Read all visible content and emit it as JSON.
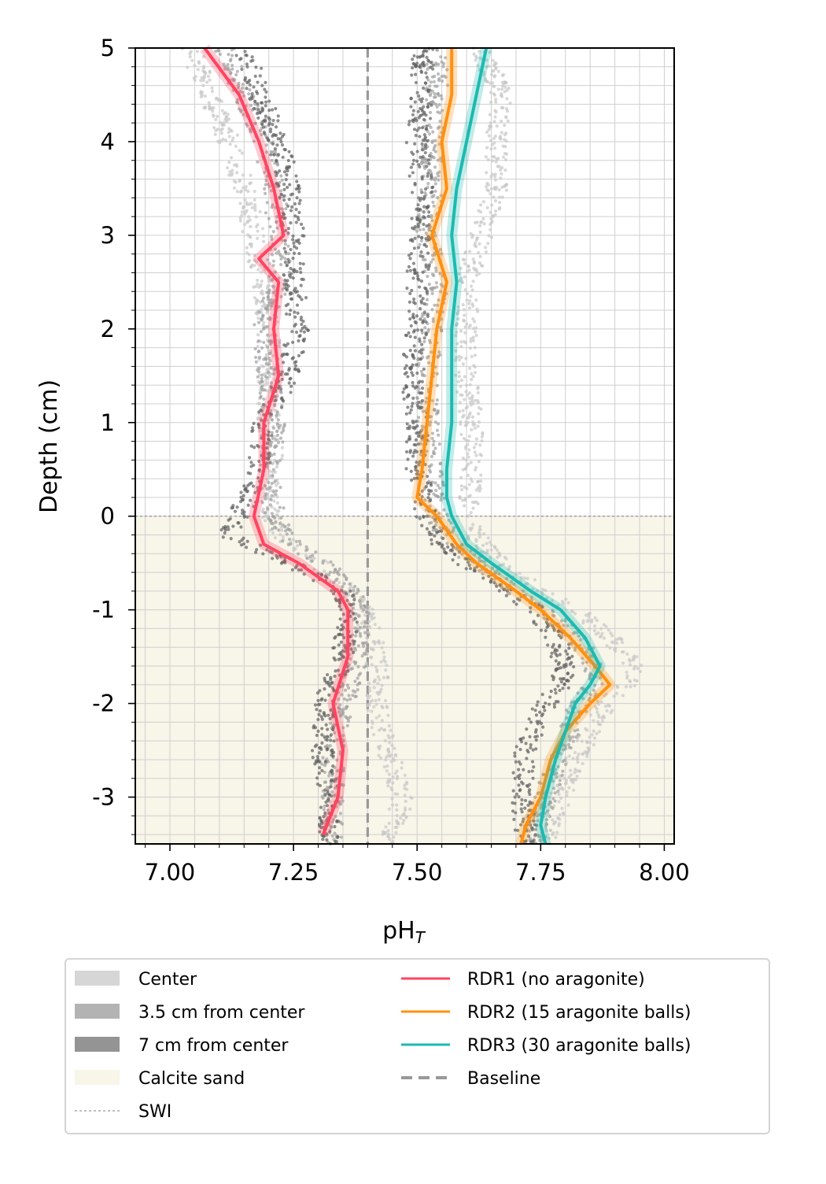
{
  "chart_data": {
    "type": "line",
    "xlabel": "pH",
    "xlabel_sub": "T",
    "ylabel": "Depth (cm)",
    "xlim": [
      6.93,
      8.02
    ],
    "ylim": [
      -3.5,
      5
    ],
    "x_ticks": [
      7.0,
      7.25,
      7.5,
      7.75,
      8.0
    ],
    "x_tick_labels": [
      "7.00",
      "7.25",
      "7.50",
      "7.75",
      "8.00"
    ],
    "y_ticks": [
      5,
      4,
      3,
      2,
      1,
      0,
      -1,
      -2,
      -3
    ],
    "y_tick_labels": [
      "5",
      "4",
      "3",
      "2",
      "1",
      "0",
      "-1",
      "-2",
      "-3"
    ],
    "grid": true,
    "swi_depth": 0,
    "baseline_ph": 7.4,
    "calcite_sand_depth_range": [
      -3.5,
      0
    ],
    "series": [
      {
        "name": "RDR1 (no aragonite)",
        "color": "#ff4460",
        "depth": [
          5.0,
          4.5,
          4.0,
          3.5,
          3.0,
          2.75,
          2.5,
          2.0,
          1.5,
          1.0,
          0.5,
          0.0,
          -0.3,
          -0.5,
          -0.8,
          -1.0,
          -1.5,
          -2.0,
          -2.5,
          -3.0,
          -3.4
        ],
        "ph": [
          7.07,
          7.14,
          7.18,
          7.21,
          7.23,
          7.18,
          7.22,
          7.21,
          7.22,
          7.19,
          7.19,
          7.17,
          7.19,
          7.26,
          7.34,
          7.36,
          7.36,
          7.33,
          7.35,
          7.34,
          7.31
        ]
      },
      {
        "name": "RDR2 (15 aragonite balls)",
        "color": "#ff9010",
        "depth": [
          5.0,
          4.5,
          4.0,
          3.5,
          3.0,
          2.5,
          2.0,
          1.5,
          1.0,
          0.5,
          0.2,
          0.0,
          -0.3,
          -0.5,
          -0.8,
          -1.0,
          -1.3,
          -1.6,
          -1.8,
          -2.0,
          -2.3,
          -2.6,
          -3.0,
          -3.3,
          -3.5
        ],
        "ph": [
          7.57,
          7.57,
          7.55,
          7.56,
          7.53,
          7.56,
          7.54,
          7.53,
          7.52,
          7.51,
          7.5,
          7.54,
          7.58,
          7.62,
          7.7,
          7.75,
          7.81,
          7.86,
          7.89,
          7.85,
          7.8,
          7.77,
          7.75,
          7.72,
          7.71
        ]
      },
      {
        "name": "RDR3 (30 aragonite balls)",
        "color": "#1cbab0",
        "depth": [
          5.0,
          4.5,
          4.0,
          3.5,
          3.0,
          2.5,
          2.0,
          1.5,
          1.0,
          0.5,
          0.2,
          0.0,
          -0.3,
          -0.5,
          -0.8,
          -1.0,
          -1.3,
          -1.6,
          -1.8,
          -2.0,
          -2.3,
          -2.6,
          -3.0,
          -3.3,
          -3.5
        ],
        "ph": [
          7.64,
          7.62,
          7.6,
          7.58,
          7.57,
          7.58,
          7.57,
          7.57,
          7.57,
          7.56,
          7.56,
          7.57,
          7.6,
          7.65,
          7.73,
          7.79,
          7.84,
          7.87,
          7.85,
          7.82,
          7.8,
          7.78,
          7.76,
          7.75,
          7.76
        ]
      }
    ],
    "scatter_groups": [
      {
        "name": "Center",
        "color": "#c8c8c8",
        "left_branch": {
          "depth": [
            5.0,
            4.5,
            4.0,
            3.5,
            3.0,
            2.5,
            2.0,
            1.5,
            1.0,
            0.5,
            0.2,
            0.0,
            -0.3,
            -0.5,
            -0.8,
            -1.0,
            -1.5,
            -2.0,
            -2.5,
            -3.0,
            -3.4
          ],
          "ph": [
            7.04,
            7.08,
            7.12,
            7.15,
            7.17,
            7.19,
            7.2,
            7.2,
            7.2,
            7.21,
            7.2,
            7.2,
            7.24,
            7.3,
            7.36,
            7.39,
            7.42,
            7.42,
            7.44,
            7.47,
            7.45
          ]
        },
        "right_branch": {
          "depth": [
            5.0,
            4.5,
            4.0,
            3.5,
            3.0,
            2.5,
            2.0,
            1.5,
            1.0,
            0.5,
            0.0,
            -0.3,
            -0.5,
            -0.8,
            -1.0,
            -1.3,
            -1.6,
            -1.8,
            -2.0,
            -2.5,
            -3.0,
            -3.3
          ],
          "ph": [
            7.63,
            7.67,
            7.66,
            7.66,
            7.63,
            7.6,
            7.6,
            7.6,
            7.61,
            7.61,
            7.6,
            7.63,
            7.68,
            7.75,
            7.82,
            7.89,
            7.94,
            7.92,
            7.88,
            7.83,
            7.79,
            7.77
          ]
        }
      },
      {
        "name": "3.5 cm from center",
        "color": "#a0a0a0",
        "left_branch": {
          "depth": [
            5.0,
            4.5,
            4.0,
            3.5,
            3.0,
            2.5,
            2.0,
            1.5,
            1.0,
            0.5,
            0.0,
            -0.3,
            -0.5,
            -0.8,
            -1.0,
            -1.5,
            -2.0,
            -2.5,
            -3.0,
            -3.4
          ],
          "ph": [
            7.11,
            7.15,
            7.19,
            7.21,
            7.22,
            7.22,
            7.19,
            7.2,
            7.21,
            7.2,
            7.21,
            7.25,
            7.31,
            7.37,
            7.38,
            7.38,
            7.35,
            7.33,
            7.33,
            7.33
          ]
        },
        "right_branch": {
          "depth": [
            5.0,
            4.5,
            4.0,
            3.5,
            3.0,
            2.5,
            2.0,
            1.5,
            1.0,
            0.5,
            0.0,
            -0.3,
            -0.5,
            -0.8,
            -1.0,
            -1.3,
            -1.6,
            -1.8,
            -2.0,
            -2.5,
            -3.0,
            -3.3
          ],
          "ph": [
            7.54,
            7.54,
            7.53,
            7.53,
            7.52,
            7.54,
            7.53,
            7.52,
            7.52,
            7.53,
            7.54,
            7.57,
            7.62,
            7.7,
            7.76,
            7.82,
            7.86,
            7.86,
            7.83,
            7.79,
            7.76,
            7.74
          ]
        }
      },
      {
        "name": "7 cm from center",
        "color": "#606060",
        "left_branch": {
          "depth": [
            5.0,
            4.5,
            4.0,
            3.5,
            3.0,
            2.5,
            2.0,
            1.5,
            1.0,
            0.5,
            0.0,
            -0.2,
            -0.5,
            -0.8,
            -1.0,
            -1.5,
            -2.0,
            -2.5,
            -3.0,
            -3.4
          ],
          "ph": [
            7.15,
            7.18,
            7.22,
            7.24,
            7.25,
            7.25,
            7.26,
            7.24,
            7.19,
            7.18,
            7.14,
            7.12,
            7.24,
            7.35,
            7.36,
            7.35,
            7.31,
            7.31,
            7.32,
            7.32
          ]
        },
        "right_branch": {
          "depth": [
            5.0,
            4.5,
            4.0,
            3.5,
            3.0,
            2.5,
            2.0,
            1.5,
            1.0,
            0.5,
            0.0,
            -0.3,
            -0.5,
            -0.8,
            -1.0,
            -1.3,
            -1.6,
            -1.8,
            -2.0,
            -2.5,
            -3.0,
            -3.3
          ],
          "ph": [
            7.51,
            7.51,
            7.5,
            7.51,
            7.51,
            7.5,
            7.5,
            7.49,
            7.5,
            7.5,
            7.52,
            7.55,
            7.6,
            7.68,
            7.74,
            7.78,
            7.8,
            7.79,
            7.76,
            7.72,
            7.71,
            7.72
          ]
        }
      }
    ],
    "legend": {
      "placement": "bottom-center",
      "entries": [
        {
          "label": "Center",
          "kind": "patch",
          "color": "#d6d6d6"
        },
        {
          "label": "3.5 cm from center",
          "kind": "patch",
          "color": "#b3b3b3"
        },
        {
          "label": "7 cm from center",
          "kind": "patch",
          "color": "#949494"
        },
        {
          "label": "Calcite sand",
          "kind": "patch",
          "color": "#f8f5e9"
        },
        {
          "label": "SWI",
          "kind": "dotted-line",
          "color": "#999999"
        },
        {
          "label": "RDR1 (no aragonite)",
          "kind": "line",
          "color": "#ff4460"
        },
        {
          "label": "RDR2 (15 aragonite balls)",
          "kind": "line",
          "color": "#ff9010"
        },
        {
          "label": "RDR3 (30 aragonite balls)",
          "kind": "line",
          "color": "#1cbab0"
        },
        {
          "label": "Baseline",
          "kind": "dashed-line",
          "color": "#999999"
        }
      ]
    }
  }
}
